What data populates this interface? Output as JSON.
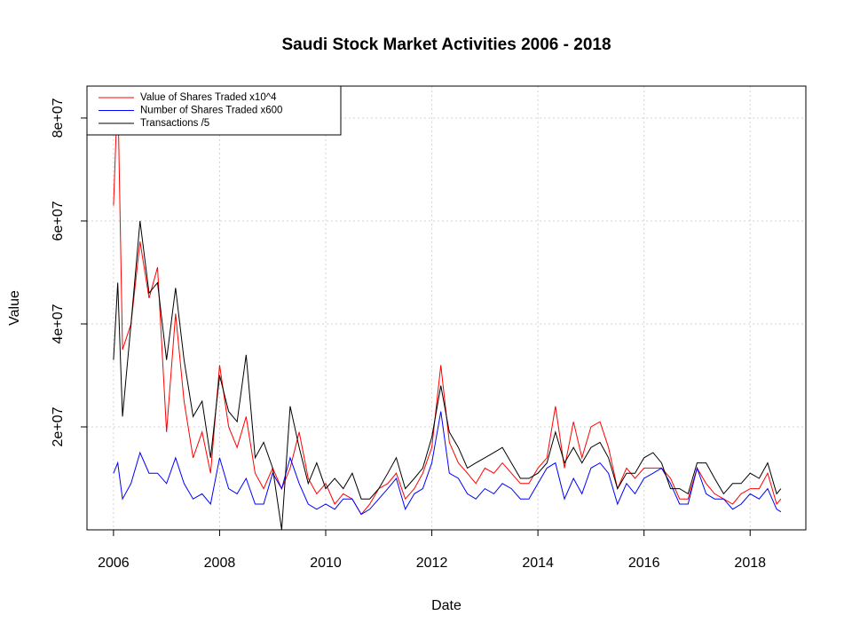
{
  "chart_data": {
    "type": "line",
    "title": "Saudi Stock Market Activities 2006 - 2018",
    "x_label": "Date",
    "y_label": "Value",
    "x": [
      2006,
      2006.08,
      2006.17,
      2006.33,
      2006.5,
      2006.67,
      2006.83,
      2007,
      2007.17,
      2007.33,
      2007.5,
      2007.67,
      2007.83,
      2008,
      2008.17,
      2008.33,
      2008.5,
      2008.67,
      2008.83,
      2009,
      2009.17,
      2009.33,
      2009.5,
      2009.67,
      2009.83,
      2010,
      2010.17,
      2010.33,
      2010.5,
      2010.67,
      2010.83,
      2011,
      2011.17,
      2011.33,
      2011.5,
      2011.67,
      2011.83,
      2012,
      2012.17,
      2012.33,
      2012.5,
      2012.67,
      2012.83,
      2013,
      2013.17,
      2013.33,
      2013.5,
      2013.67,
      2013.83,
      2014,
      2014.17,
      2014.33,
      2014.5,
      2014.67,
      2014.83,
      2015,
      2015.17,
      2015.33,
      2015.5,
      2015.67,
      2015.83,
      2016,
      2016.17,
      2016.33,
      2016.5,
      2016.67,
      2016.83,
      2017,
      2017.17,
      2017.33,
      2017.5,
      2017.67,
      2017.83,
      2018,
      2018.17,
      2018.33,
      2018.5,
      2018.58
    ],
    "series": [
      {
        "name": "Value of Shares Traded x10^4",
        "color": "#ff0000",
        "values": [
          63000000.0,
          86000000.0,
          35000000.0,
          40000000.0,
          56000000.0,
          45000000.0,
          51000000.0,
          19000000.0,
          42000000.0,
          25000000.0,
          14000000.0,
          19000000.0,
          11000000.0,
          32000000.0,
          20000000.0,
          16000000.0,
          22000000.0,
          11000000.0,
          8000000.0,
          12000000.0,
          8000000.0,
          12000000.0,
          19000000.0,
          10000000.0,
          7000000.0,
          9000000.0,
          5000000.0,
          7000000.0,
          6000000.0,
          3000000.0,
          5000000.0,
          8000000.0,
          9000000.0,
          11000000.0,
          6000000.0,
          8000000.0,
          11000000.0,
          16000000.0,
          32000000.0,
          17000000.0,
          13000000.0,
          11000000.0,
          9000000.0,
          12000000.0,
          11000000.0,
          13000000.0,
          11000000.0,
          9000000.0,
          9000000.0,
          12000000.0,
          14000000.0,
          24000000.0,
          12000000.0,
          21000000.0,
          14000000.0,
          20000000.0,
          21000000.0,
          16000000.0,
          8000000.0,
          12000000.0,
          10000000.0,
          12000000.0,
          12000000.0,
          12000000.0,
          10000000.0,
          6000000.0,
          6000000.0,
          12000000.0,
          9000000.0,
          7000000.0,
          6000000.0,
          5000000.0,
          7000000.0,
          8000000.0,
          8000000.0,
          11000000.0,
          5000000.0,
          6000000.0
        ]
      },
      {
        "name": "Number of Shares Traded x600",
        "color": "#0000ff",
        "values": [
          11000000.0,
          13000000.0,
          6000000.0,
          9000000.0,
          15000000.0,
          11000000.0,
          11000000.0,
          9000000.0,
          14000000.0,
          9000000.0,
          6000000.0,
          7000000.0,
          5000000.0,
          14000000.0,
          8000000.0,
          7000000.0,
          10000000.0,
          5000000.0,
          5000000.0,
          11000000.0,
          8000000.0,
          14000000.0,
          9000000.0,
          5000000.0,
          4000000.0,
          5000000.0,
          4000000.0,
          6000000.0,
          6000000.0,
          3000000.0,
          4000000.0,
          6000000.0,
          8000000.0,
          10000000.0,
          4000000.0,
          7000000.0,
          8000000.0,
          13000000.0,
          23000000.0,
          11000000.0,
          10000000.0,
          7000000.0,
          6000000.0,
          8000000.0,
          7000000.0,
          9000000.0,
          8000000.0,
          6000000.0,
          6000000.0,
          9000000.0,
          12000000.0,
          13000000.0,
          6000000.0,
          10000000.0,
          7000000.0,
          12000000.0,
          13000000.0,
          11000000.0,
          5000000.0,
          9000000.0,
          7000000.0,
          10000000.0,
          11000000.0,
          12000000.0,
          9000000.0,
          5000000.0,
          5000000.0,
          12000000.0,
          7000000.0,
          6000000.0,
          6000000.0,
          4000000.0,
          5000000.0,
          7000000.0,
          6000000.0,
          8000000.0,
          4000000.0,
          3500000.0
        ]
      },
      {
        "name": "Transactions /5",
        "color": "#000000",
        "values": [
          33000000.0,
          48000000.0,
          22000000.0,
          40000000.0,
          60000000.0,
          46000000.0,
          48000000.0,
          33000000.0,
          47000000.0,
          33000000.0,
          22000000.0,
          25000000.0,
          14000000.0,
          30000000.0,
          23000000.0,
          21000000.0,
          34000000.0,
          14000000.0,
          17000000.0,
          12000000.0,
          0,
          24000000.0,
          16000000.0,
          9000000.0,
          13000000.0,
          8000000.0,
          10000000.0,
          8000000.0,
          11000000.0,
          6000000.0,
          6000000.0,
          8000000.0,
          11000000.0,
          14000000.0,
          8000000.0,
          10000000.0,
          12000000.0,
          18000000.0,
          28000000.0,
          19000000.0,
          16000000.0,
          12000000.0,
          13000000.0,
          14000000.0,
          15000000.0,
          16000000.0,
          13000000.0,
          10000000.0,
          10000000.0,
          11000000.0,
          13000000.0,
          19000000.0,
          13000000.0,
          16000000.0,
          13000000.0,
          16000000.0,
          17000000.0,
          14000000.0,
          8000000.0,
          11000000.0,
          11000000.0,
          14000000.0,
          15000000.0,
          13000000.0,
          8000000.0,
          8000000.0,
          7000000.0,
          13000000.0,
          13000000.0,
          10000000.0,
          7000000.0,
          9000000.0,
          9000000.0,
          11000000.0,
          10000000.0,
          13000000.0,
          7000000.0,
          8000000.0
        ]
      }
    ],
    "xlim": [
      2005.5,
      2019.05
    ],
    "xticks": [
      2006,
      2008,
      2010,
      2012,
      2014,
      2016,
      2018
    ],
    "ylim": [
      0,
      86200000
    ],
    "yticks": [
      {
        "value": 20000000,
        "label": "2e+07"
      },
      {
        "value": 40000000,
        "label": "4e+07"
      },
      {
        "value": 60000000,
        "label": "6e+07"
      },
      {
        "value": 80000000,
        "label": "8e+07"
      }
    ],
    "grid": true,
    "legend": "topleft"
  }
}
